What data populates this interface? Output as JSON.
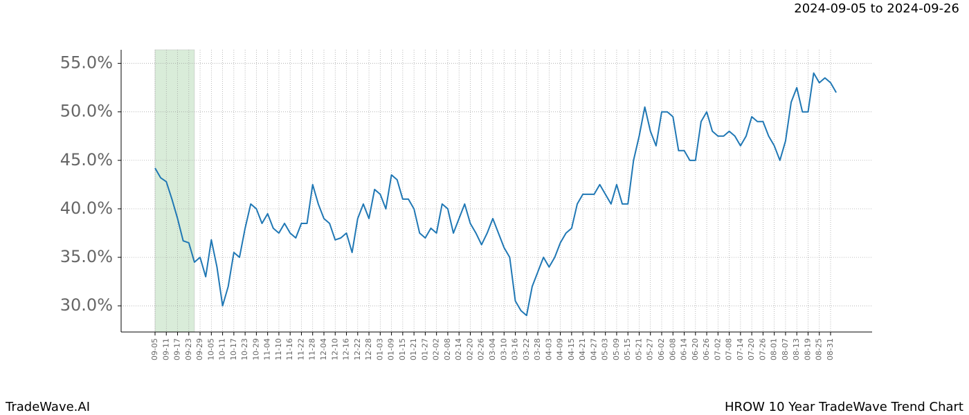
{
  "header": "2024-09-05 to 2024-09-26",
  "footer_left": "TradeWave.AI",
  "footer_right": "HROW 10 Year TradeWave Trend Chart",
  "chart_data": {
    "type": "line",
    "color": "#1f77b4",
    "highlight": {
      "from": 0,
      "to": 7,
      "color": "#d9ecd9"
    },
    "grid": true,
    "categories": [
      "09-05",
      null,
      "09-11",
      null,
      "09-17",
      null,
      "09-23",
      null,
      "09-29",
      null,
      "10-05",
      null,
      "10-11",
      null,
      "10-17",
      null,
      "10-23",
      null,
      "10-29",
      null,
      "11-04",
      null,
      "11-10",
      null,
      "11-16",
      null,
      "11-22",
      null,
      "11-28",
      null,
      "12-04",
      null,
      "12-10",
      null,
      "12-16",
      null,
      "12-22",
      null,
      "12-28",
      null,
      "01-03",
      null,
      "01-09",
      null,
      "01-15",
      null,
      "01-21",
      null,
      "01-27",
      null,
      "02-02",
      null,
      "02-08",
      null,
      "02-14",
      null,
      "02-20",
      null,
      "02-26",
      null,
      "03-04",
      null,
      "03-10",
      null,
      "03-16",
      null,
      "03-22",
      null,
      "03-28",
      null,
      "04-03",
      null,
      "04-09",
      null,
      "04-15",
      null,
      "04-21",
      null,
      "04-27",
      null,
      "05-03",
      null,
      "05-09",
      null,
      "05-15",
      null,
      "05-21",
      null,
      "05-27",
      null,
      "06-02",
      null,
      "06-08",
      null,
      "06-14",
      null,
      "06-20",
      null,
      "06-26",
      null,
      "07-02",
      null,
      "07-08",
      null,
      "07-14",
      null,
      "07-20",
      null,
      "07-26",
      null,
      "08-01",
      null,
      "08-07",
      null,
      "08-13",
      null,
      "08-19",
      null,
      "08-25",
      null,
      "08-31",
      null
    ],
    "values": [
      44.2,
      43.2,
      42.8,
      41,
      39,
      36.7,
      36.5,
      34.5,
      35,
      33,
      36.8,
      34,
      30,
      32,
      35.5,
      35,
      38,
      40.5,
      40,
      38.5,
      39.5,
      38,
      37.5,
      38.5,
      37.5,
      37,
      38.5,
      38.5,
      42.5,
      40.5,
      39,
      38.5,
      36.8,
      37,
      37.5,
      35.5,
      39,
      40.5,
      39,
      42,
      41.5,
      40,
      43.5,
      43,
      41,
      41,
      40,
      37.5,
      37,
      38,
      37.5,
      40.5,
      40,
      37.5,
      39,
      40.5,
      38.5,
      37.5,
      36.3,
      37.5,
      39,
      37.5,
      36,
      35,
      30.5,
      29.5,
      29,
      32,
      33.5,
      35,
      34,
      35,
      36.5,
      37.5,
      38,
      40.5,
      41.5,
      41.5,
      41.5,
      42.5,
      41.5,
      40.5,
      42.5,
      40.5,
      40.5,
      45,
      47.5,
      50.5,
      48,
      46.5,
      50,
      50,
      49.5,
      46,
      46,
      45,
      45,
      49,
      50,
      48,
      47.5,
      47.5,
      48,
      47.5,
      46.5,
      47.5,
      49.5,
      49,
      49,
      47.5,
      46.5,
      45,
      47,
      51,
      52.5,
      50,
      50,
      54,
      53,
      53.5,
      53,
      52
    ],
    "ylim": [
      27.3,
      56.4
    ],
    "yticks": [
      {
        "value": 30,
        "label": "30.0%"
      },
      {
        "value": 35,
        "label": "35.0%"
      },
      {
        "value": 40,
        "label": "40.0%"
      },
      {
        "value": 45,
        "label": "45.0%"
      },
      {
        "value": 50,
        "label": "50.0%"
      },
      {
        "value": 55,
        "label": "55.0%"
      }
    ]
  }
}
